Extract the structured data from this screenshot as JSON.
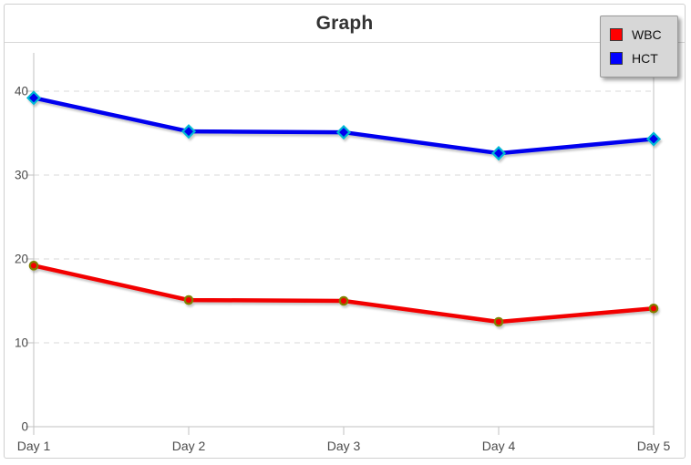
{
  "window": {
    "title": "Graph"
  },
  "legend": {
    "position": "top-right",
    "items": [
      {
        "label": "WBC",
        "color": "#ff0000"
      },
      {
        "label": "HCT",
        "color": "#0000ff"
      }
    ]
  },
  "chart_data": {
    "type": "line",
    "title": "Graph",
    "categories": [
      "Day 1",
      "Day 2",
      "Day 3",
      "Day 4",
      "Day 5"
    ],
    "series": [
      {
        "name": "WBC",
        "color": "#f20000",
        "marker": "circle",
        "marker_edge": "#808000",
        "values": [
          19.2,
          15.1,
          15.0,
          12.5,
          14.1
        ]
      },
      {
        "name": "HCT",
        "color": "#0000ee",
        "marker": "diamond",
        "marker_edge": "#00b8d4",
        "values": [
          39.2,
          35.2,
          35.1,
          32.6,
          34.3
        ]
      }
    ],
    "xlabel": "",
    "ylabel": "",
    "ylim": [
      0,
      40
    ],
    "yticks": [
      0,
      10,
      20,
      30,
      40
    ],
    "grid": "horizontal-dashed",
    "legend_position": "top-right"
  }
}
